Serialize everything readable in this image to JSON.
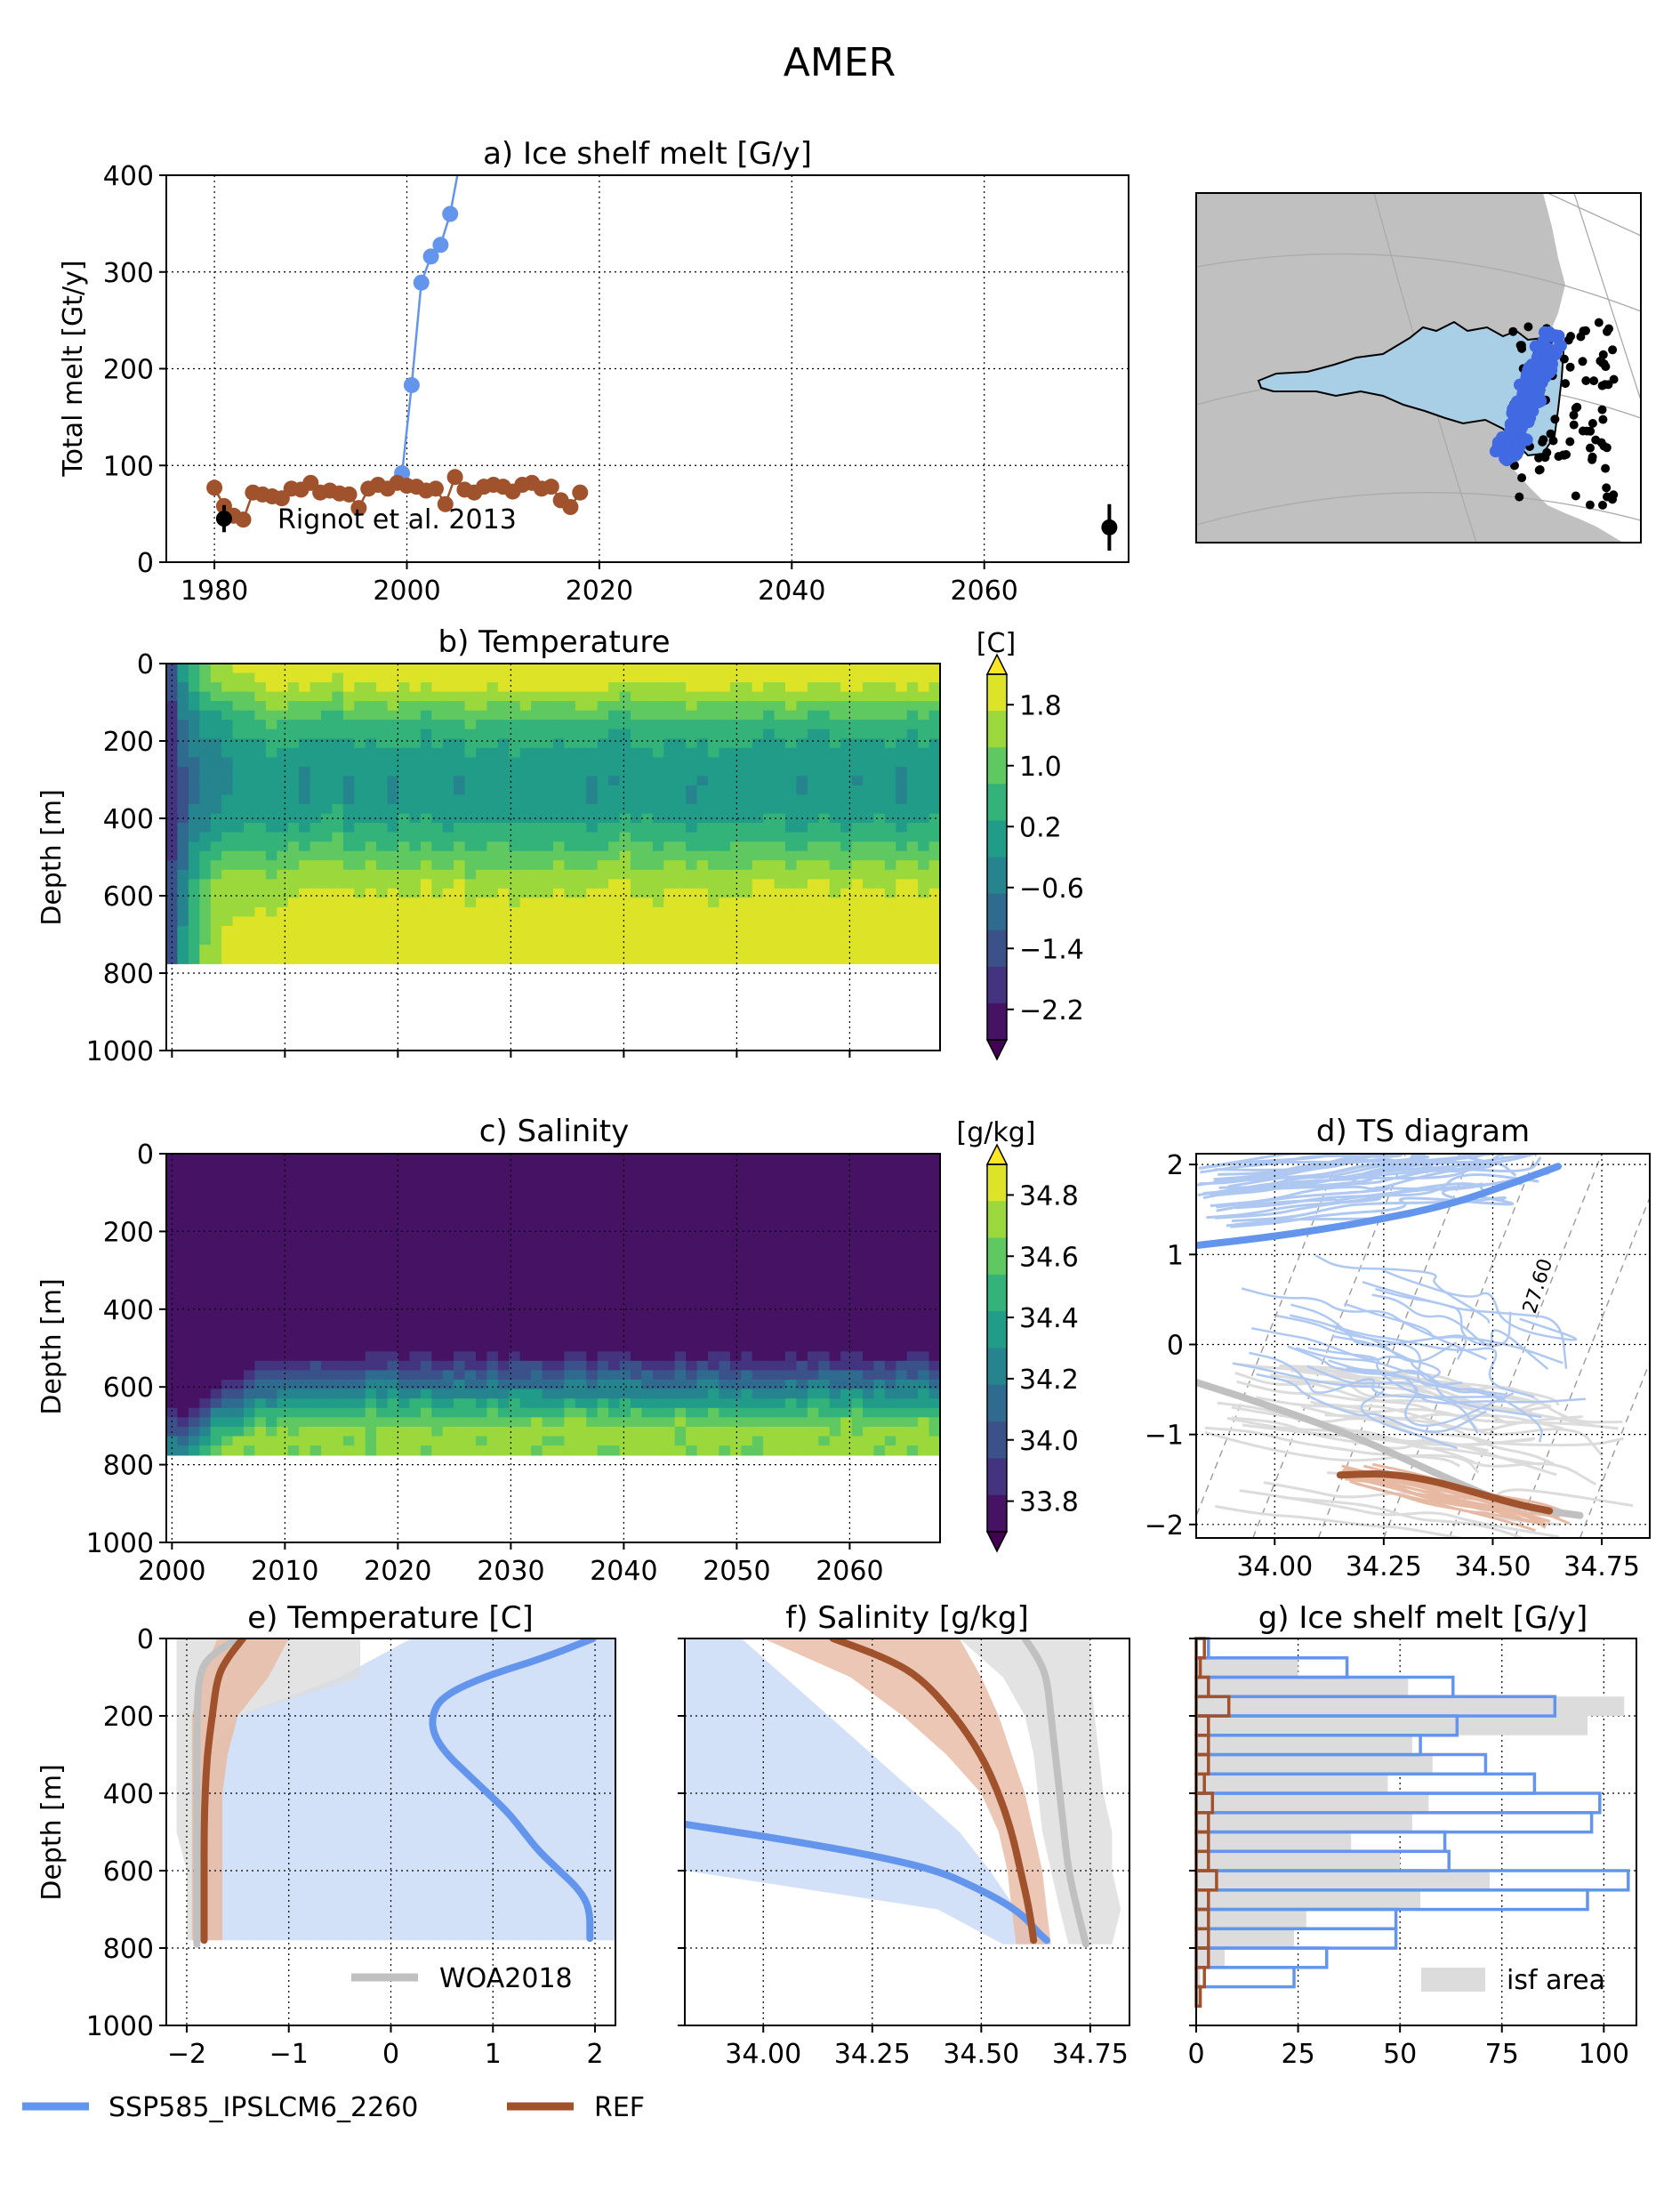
{
  "figure": {
    "title": "AMER",
    "colors": {
      "ssp": "#6495ed",
      "ref": "#a0522d",
      "woa": "#c0c0c0",
      "ssp_light": "#aec8f2",
      "ref_light": "#e7b9a2",
      "gray_light": "#dcdcdc",
      "isf": "#a9cfe6",
      "land": "#c0c0c0",
      "scatter_blue": "#4169e1"
    }
  },
  "legend": {
    "ssp_label": "SSP585_IPSLCM6_2260",
    "ref_label": "REF"
  },
  "chart_data": [
    {
      "id": "a",
      "type": "line",
      "title": "a) Ice shelf melt [G/y]",
      "ylabel": "Total melt [Gt/y]",
      "xlim": [
        1975,
        2075
      ],
      "ylim": [
        0,
        400
      ],
      "xticks": [
        1980,
        2000,
        2020,
        2040,
        2060
      ],
      "yticks": [
        0,
        100,
        200,
        300,
        400
      ],
      "grid": true,
      "series": [
        {
          "name": "SSP585_IPSLCM6_2260",
          "x": [
            1999.5,
            2000.5,
            2001.5,
            2002.5,
            2003.5,
            2004.5,
            2006
          ],
          "y": [
            92,
            183,
            289,
            316,
            328,
            360,
            440
          ]
        },
        {
          "name": "REF",
          "x": [
            1980,
            1981,
            1982,
            1983,
            1984,
            1985,
            1986,
            1987,
            1988,
            1989,
            1990,
            1991,
            1992,
            1993,
            1994,
            1995,
            1996,
            1997,
            1998,
            1999,
            2000,
            2001,
            2002,
            2003,
            2004,
            2005,
            2006,
            2007,
            2008,
            2009,
            2010,
            2011,
            2012,
            2013,
            2014,
            2015,
            2016,
            2017,
            2018
          ],
          "y": [
            77,
            58,
            48,
            44,
            72,
            70,
            68,
            66,
            76,
            75,
            82,
            72,
            74,
            71,
            70,
            56,
            76,
            80,
            76,
            82,
            79,
            78,
            74,
            76,
            60,
            88,
            75,
            72,
            78,
            80,
            78,
            73,
            80,
            82,
            76,
            78,
            64,
            57,
            72
          ]
        }
      ],
      "observations": [
        {
          "label": "Rignot et al. 2013",
          "x": 1981,
          "y": 45,
          "err": 14
        },
        {
          "label": "",
          "x": 2073,
          "y": 36,
          "err": 24
        }
      ]
    },
    {
      "id": "b",
      "type": "heatmap",
      "title": "b) Temperature",
      "ylabel": "Depth [m]",
      "ylim": [
        1000,
        0
      ],
      "yticks": [
        0,
        200,
        400,
        600,
        800,
        1000
      ],
      "xlim": [
        1999.5,
        2068
      ],
      "data_depth_max": 775,
      "colorbar_label": "[C]",
      "colorbar_ticks": [
        "1.8",
        "1.0",
        "0.2",
        "−0.6",
        "−1.4",
        "−2.2"
      ],
      "levels": [
        -2.2,
        1.9
      ],
      "profile_depths": [
        0,
        50,
        100,
        150,
        200,
        250,
        300,
        350,
        400,
        450,
        500,
        550,
        600,
        650,
        700,
        775
      ],
      "profile_values": [
        1.9,
        1.6,
        1.1,
        0.6,
        0.3,
        0.1,
        0.0,
        0.0,
        0.2,
        0.5,
        0.9,
        1.3,
        1.5,
        1.7,
        1.85,
        1.9
      ]
    },
    {
      "id": "c",
      "type": "heatmap",
      "title": "c) Salinity",
      "ylabel": "Depth [m]",
      "ylim": [
        1000,
        0
      ],
      "yticks": [
        0,
        200,
        400,
        600,
        800,
        1000
      ],
      "xlim": [
        1999.5,
        2068
      ],
      "xticks": [
        2000,
        2010,
        2020,
        2030,
        2040,
        2050,
        2060
      ],
      "data_depth_max": 775,
      "colorbar_label": "[g/kg]",
      "colorbar_ticks": [
        "34.8",
        "34.6",
        "34.4",
        "34.2",
        "34.0",
        "33.8"
      ],
      "levels": [
        33.8,
        34.8
      ]
    },
    {
      "id": "d",
      "type": "line",
      "title": "d) TS diagram",
      "xlim": [
        33.82,
        34.86
      ],
      "ylim": [
        -2.15,
        2.12
      ],
      "xticks": [
        "34.00",
        "34.25",
        "34.50",
        "34.75"
      ],
      "yticks": [
        "2",
        "1",
        "0",
        "−1",
        "−2"
      ],
      "isopycnal_label": "27.60",
      "grid": true,
      "series": [
        {
          "name": "SSP585_IPSLCM6_2260",
          "x": [
            33.82,
            34.0,
            34.2,
            34.4,
            34.55,
            34.65
          ],
          "y": [
            1.1,
            1.2,
            1.35,
            1.55,
            1.8,
            1.98
          ]
        },
        {
          "name": "REF",
          "x": [
            34.15,
            34.25,
            34.35,
            34.45,
            34.55,
            34.63
          ],
          "y": [
            -1.45,
            -1.43,
            -1.5,
            -1.63,
            -1.77,
            -1.85
          ]
        },
        {
          "name": "WOA2018",
          "x": [
            33.82,
            34.0,
            34.2,
            34.4,
            34.55,
            34.7
          ],
          "y": [
            -0.42,
            -0.7,
            -1.05,
            -1.5,
            -1.8,
            -1.9
          ]
        }
      ]
    },
    {
      "id": "e",
      "type": "line",
      "title": "e) Temperature [C]",
      "ylabel": "Depth [m]",
      "xlim": [
        -2.2,
        2.2
      ],
      "ylim": [
        1000,
        0
      ],
      "xticks": [
        "−2",
        "−1",
        "0",
        "1",
        "2"
      ],
      "yticks": [
        0,
        200,
        400,
        600,
        800,
        1000
      ],
      "grid": true,
      "legend_label": "WOA2018",
      "series": [
        {
          "name": "SSP585_IPSLCM6_2260",
          "y": [
            0,
            50,
            100,
            150,
            200,
            250,
            300,
            350,
            400,
            450,
            500,
            550,
            600,
            650,
            700,
            775
          ],
          "x": [
            1.98,
            1.5,
            0.9,
            0.5,
            0.4,
            0.42,
            0.55,
            0.75,
            0.95,
            1.15,
            1.3,
            1.45,
            1.65,
            1.85,
            1.95,
            1.95
          ]
        },
        {
          "name": "REF",
          "y": [
            0,
            50,
            100,
            200,
            300,
            400,
            500,
            600,
            700,
            780
          ],
          "x": [
            -1.45,
            -1.6,
            -1.7,
            -1.75,
            -1.8,
            -1.82,
            -1.83,
            -1.83,
            -1.83,
            -1.83
          ]
        },
        {
          "name": "WOA2018",
          "y": [
            0,
            50,
            100,
            200,
            300,
            400,
            500,
            600,
            700,
            790
          ],
          "x": [
            -1.5,
            -1.8,
            -1.88,
            -1.9,
            -1.9,
            -1.9,
            -1.9,
            -1.9,
            -1.9,
            -1.9
          ]
        }
      ]
    },
    {
      "id": "f",
      "type": "line",
      "title": "f) Salinity [g/kg]",
      "xlim": [
        33.82,
        34.84
      ],
      "ylim": [
        1000,
        0
      ],
      "xticks": [
        "34.00",
        "34.25",
        "34.50",
        "34.75"
      ],
      "grid": true,
      "series": [
        {
          "name": "SSP585_IPSLCM6_2260",
          "y": [
            480,
            520,
            560,
            600,
            640,
            680,
            720,
            760,
            780
          ],
          "x": [
            33.82,
            34.05,
            34.25,
            34.4,
            34.48,
            34.55,
            34.6,
            34.63,
            34.65
          ]
        },
        {
          "name": "REF",
          "y": [
            0,
            50,
            100,
            200,
            300,
            400,
            500,
            600,
            700,
            780
          ],
          "x": [
            34.16,
            34.28,
            34.36,
            34.44,
            34.5,
            34.54,
            34.57,
            34.59,
            34.61,
            34.62
          ]
        },
        {
          "name": "WOA2018",
          "y": [
            0,
            50,
            100,
            200,
            300,
            400,
            500,
            600,
            700,
            790
          ],
          "x": [
            34.6,
            34.63,
            34.65,
            34.66,
            34.67,
            34.68,
            34.69,
            34.7,
            34.72,
            34.74
          ]
        }
      ]
    },
    {
      "id": "g",
      "type": "bar",
      "title": "g) Ice shelf melt [G/y]",
      "xlim": [
        0,
        108
      ],
      "ylim": [
        1000,
        0
      ],
      "xticks": [
        "0",
        "25",
        "50",
        "75",
        "100"
      ],
      "grid": true,
      "legend_label": "isf area",
      "bin_tops": [
        0,
        50,
        100,
        150,
        200,
        250,
        300,
        350,
        400,
        450,
        500,
        550,
        600,
        650,
        700,
        750,
        800,
        850,
        900,
        950
      ],
      "bin_height": 50,
      "isf_area": [
        0,
        25,
        52,
        105,
        96,
        53,
        58,
        47,
        57,
        53,
        38,
        50,
        72,
        55,
        27,
        24,
        7,
        1,
        1,
        0
      ],
      "ssp_melt": [
        3,
        37,
        63,
        88,
        64,
        55,
        71,
        83,
        99,
        97,
        61,
        62,
        106,
        96,
        49,
        49,
        32,
        24,
        0,
        0
      ],
      "ref_melt": [
        2,
        1,
        3,
        8,
        3,
        3,
        3,
        2,
        4,
        3,
        3,
        3,
        5,
        3,
        3,
        3,
        3,
        2,
        1,
        0
      ]
    }
  ],
  "map": {
    "colors": {
      "land": "#c0c0c0",
      "ice_shelf": "#a9cfe6",
      "profiles": "#4169e1",
      "stations": "#000000"
    }
  }
}
